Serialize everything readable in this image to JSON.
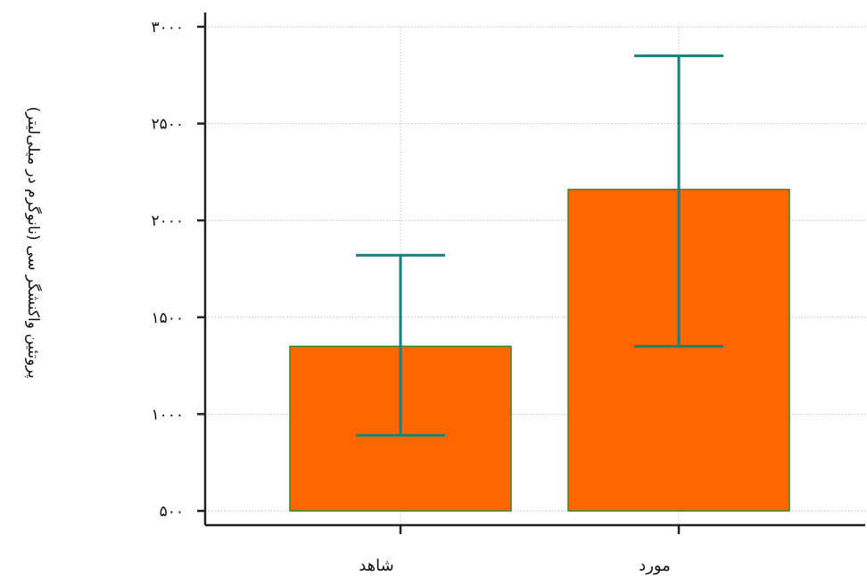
{
  "chart_data": {
    "type": "bar",
    "categories": [
      "شاهد",
      "مورد"
    ],
    "values": [
      1350,
      2160
    ],
    "error_low": [
      890,
      1350
    ],
    "error_high": [
      1820,
      2850
    ],
    "ylabel": "پروتئین واکنشگر سی (نانوگرم در میلی‌لیتر)",
    "xlabel": "",
    "title": "",
    "ylim": [
      500,
      3000
    ],
    "yticks": [
      500,
      1000,
      1500,
      2000,
      2500,
      3000
    ],
    "ytick_labels": [
      "۵۰۰",
      "۱۰۰۰",
      "۱۵۰۰",
      "۲۰۰۰",
      "۲۵۰۰",
      "۳۰۰۰"
    ],
    "grid": true,
    "bar_color": "#ff6600",
    "bar_edge_color": "#2e8b2e",
    "error_color": "#1a7f7f",
    "axis_color": "#222222",
    "grid_color": "#c0c0c0"
  }
}
